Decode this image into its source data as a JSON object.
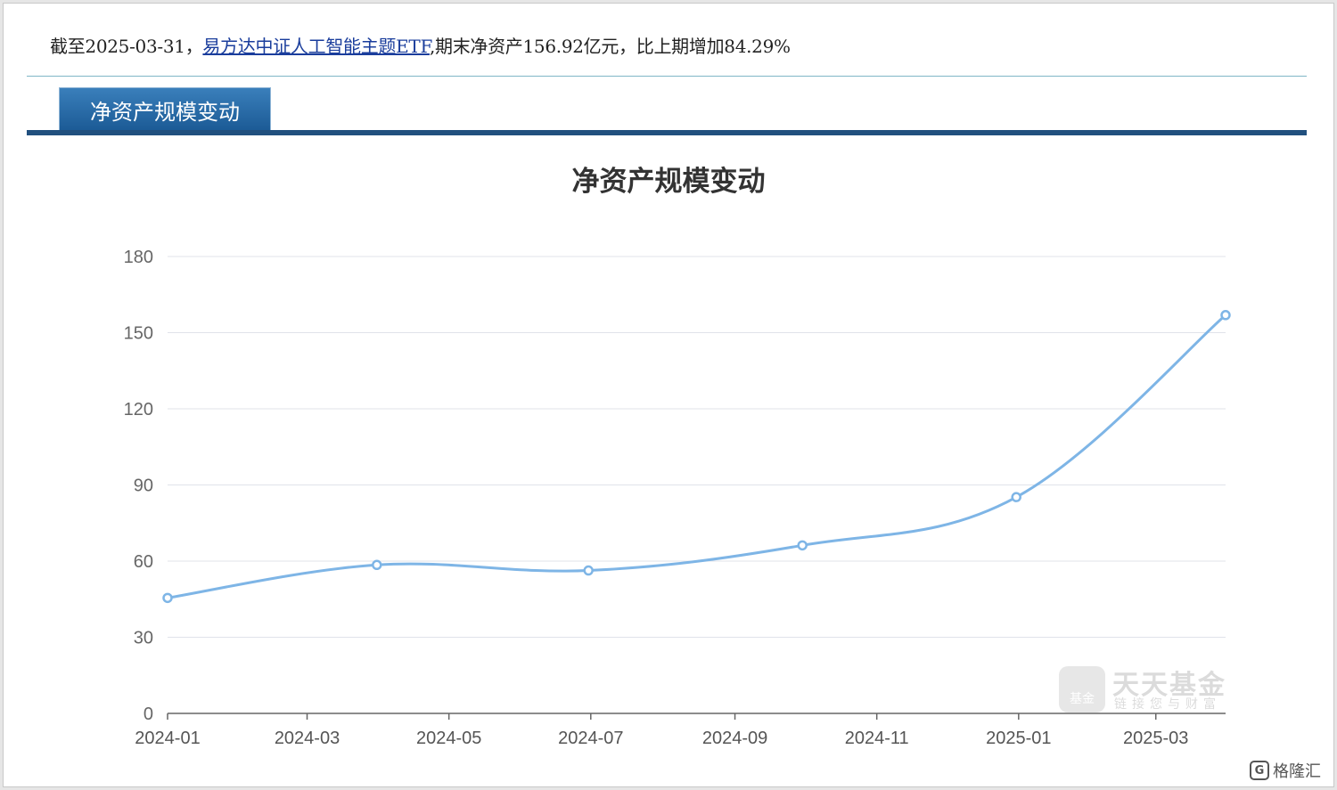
{
  "summary": {
    "prefix": "截至2025-03-31，",
    "fund_link": "易方达中证人工智能主题ETF",
    "suffix": ",期末净资产156.92亿元，比上期增加84.29%"
  },
  "tab": {
    "label": "净资产规模变动"
  },
  "chart_data": {
    "type": "line",
    "title": "净资产规模变动",
    "xlabel": "",
    "ylabel": "",
    "x_tick_labels": [
      "2024-01",
      "2024-03",
      "2024-05",
      "2024-07",
      "2024-09",
      "2024-11",
      "2025-01",
      "2025-03"
    ],
    "y_tick_labels": [
      "0",
      "30",
      "60",
      "90",
      "120",
      "150",
      "180"
    ],
    "ylim": [
      0,
      180
    ],
    "grid": true,
    "smooth": true,
    "line_color": "#7eb5e6",
    "points": [
      {
        "x": "2024-01-01",
        "y": 45.5
      },
      {
        "x": "2024-03-31",
        "y": 58.5
      },
      {
        "x": "2024-06-30",
        "y": 56.3
      },
      {
        "x": "2024-09-30",
        "y": 66.2
      },
      {
        "x": "2024-12-31",
        "y": 85.2
      },
      {
        "x": "2025-03-31",
        "y": 156.92
      }
    ]
  },
  "watermark": {
    "brand": "天天基金",
    "slogan": "链接您与财富",
    "badge": "基金"
  },
  "corner_logo": {
    "icon": "G",
    "text": "格隆汇"
  }
}
